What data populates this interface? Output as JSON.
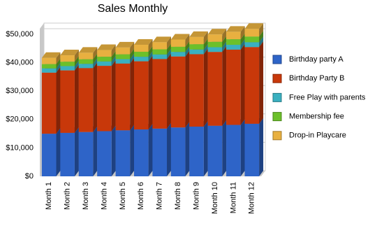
{
  "chart_data": {
    "type": "bar3d-stacked",
    "title": "Sales Monthly",
    "categories": [
      "Month 1",
      "Month 2",
      "Month 3",
      "Month 4",
      "Month 5",
      "Month 6",
      "Month 7",
      "Month 8",
      "Month 9",
      "Month 10",
      "Month 11",
      "Month 12"
    ],
    "series": [
      {
        "name": "Birthday party A",
        "color": "#2e64c8",
        "values": [
          15000,
          15300,
          15600,
          15900,
          16200,
          16500,
          16800,
          17200,
          17500,
          17800,
          18100,
          18500
        ]
      },
      {
        "name": "Birthday Party B",
        "color": "#c8380a",
        "values": [
          21500,
          22000,
          22500,
          23000,
          23500,
          24000,
          24500,
          25000,
          25500,
          26000,
          26500,
          27000
        ]
      },
      {
        "name": "Free Play with parents",
        "color": "#3ab0c0",
        "values": [
          1500,
          1500,
          1500,
          1550,
          1550,
          1600,
          1600,
          1600,
          1650,
          1650,
          1700,
          1700
        ]
      },
      {
        "name": "Membership fee",
        "color": "#6cc02a",
        "values": [
          1500,
          1550,
          1600,
          1650,
          1700,
          1750,
          1800,
          1800,
          1850,
          1900,
          1950,
          2000
        ]
      },
      {
        "name": "Drop-in Playcare",
        "color": "#e8b040",
        "values": [
          2200,
          2250,
          2300,
          2350,
          2400,
          2450,
          2500,
          2550,
          2550,
          2600,
          2650,
          2700
        ]
      }
    ],
    "ylim": [
      0,
      50000
    ],
    "yticks": [
      {
        "value": 0,
        "label": "$0"
      },
      {
        "value": 10000,
        "label": "$10,000"
      },
      {
        "value": 20000,
        "label": "$20,000"
      },
      {
        "value": 30000,
        "label": "$30,000"
      },
      {
        "value": 40000,
        "label": "$40,000"
      },
      {
        "value": 50000,
        "label": "$50,000"
      }
    ],
    "grid": true,
    "legend": "right"
  }
}
